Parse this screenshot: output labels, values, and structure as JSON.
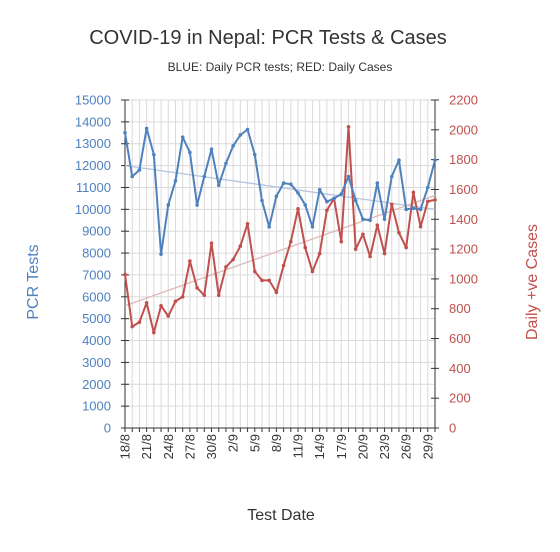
{
  "chart_data": {
    "type": "line",
    "title": "COVID-19 in Nepal: PCR Tests & Cases",
    "subtitle": "BLUE: Daily PCR tests; RED: Daily Cases",
    "xlabel": "Test Date",
    "ylabel_left": "PCR Tests",
    "ylabel_right": "Daily +ve Cases",
    "ylim_left": [
      0,
      15000
    ],
    "ylim_right": [
      0,
      2200
    ],
    "ytick_step_left": 1000,
    "ytick_step_right": 200,
    "grid": true,
    "x_tick_labels": [
      "18/8",
      "21/8",
      "24/8",
      "27/8",
      "30/8",
      "2/9",
      "5/9",
      "8/9",
      "11/9",
      "14/9",
      "17/9",
      "20/9",
      "23/9",
      "26/9",
      "29/9"
    ],
    "x_tick_every": 3,
    "series": [
      {
        "axis": "left",
        "color": "#4f81bd",
        "values": [
          13500,
          11500,
          11800,
          13700,
          12500,
          7950,
          10200,
          11300,
          13300,
          12600,
          10200,
          11500,
          12750,
          11100,
          12100,
          12900,
          13400,
          13650,
          12500,
          10400,
          9200,
          10600,
          11200,
          11150,
          10750,
          10200,
          9200,
          10900,
          10350,
          10500,
          10700,
          11500,
          10400,
          9550,
          9500,
          11200,
          9550,
          11500,
          12250,
          10000,
          10050,
          10000,
          11000,
          12250
        ]
      },
      {
        "axis": "right",
        "color": "#c0504d",
        "values": [
          1030,
          680,
          710,
          840,
          640,
          820,
          750,
          850,
          880,
          1120,
          940,
          890,
          1240,
          890,
          1080,
          1130,
          1220,
          1370,
          1050,
          990,
          990,
          910,
          1090,
          1250,
          1470,
          1210,
          1050,
          1170,
          1460,
          1540,
          1250,
          2020,
          1200,
          1300,
          1150,
          1360,
          1170,
          1500,
          1310,
          1210,
          1580,
          1350,
          1520,
          1530
        ]
      }
    ],
    "trendlines": [
      {
        "axis": "left",
        "color": "#b3c5e0",
        "start": 12000,
        "end": 10000
      },
      {
        "axis": "right",
        "color": "#deb7b6",
        "start": 820,
        "end": 1560
      }
    ]
  }
}
